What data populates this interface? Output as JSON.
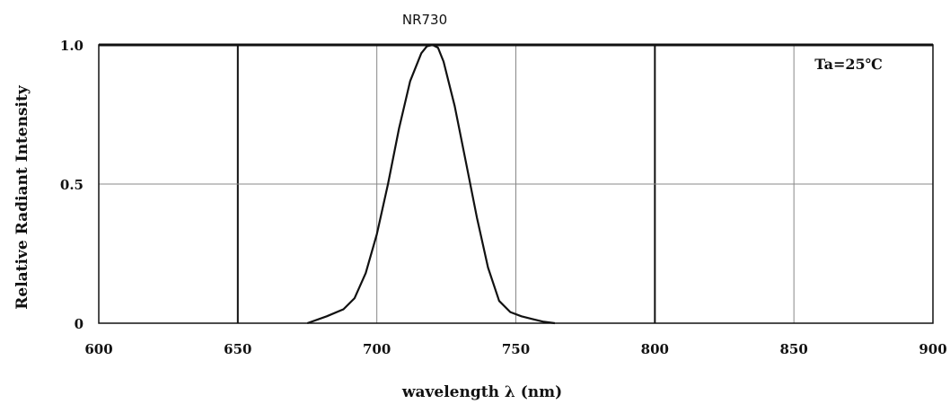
{
  "chart_data": {
    "type": "line",
    "title": "NR730",
    "xlabel": "wavelength λ (nm)",
    "ylabel": "Relative Radiant Intensity",
    "xlim": [
      600,
      900
    ],
    "ylim": [
      0,
      1.0
    ],
    "x_ticks": [
      "600",
      "650",
      "700",
      "750",
      "800",
      "850",
      "900"
    ],
    "y_ticks": [
      "0",
      "0.5",
      "1.0"
    ],
    "grid": true,
    "annotation": "Ta=25℃",
    "annotation_position": "top-right",
    "series": [
      {
        "x": [
          675,
          682,
          688,
          692,
          696,
          700,
          704,
          708,
          712,
          716,
          718,
          720,
          722,
          724,
          728,
          732,
          736,
          740,
          744,
          748,
          752,
          756,
          760,
          764
        ],
        "y": [
          0,
          0.025,
          0.05,
          0.09,
          0.18,
          0.32,
          0.5,
          0.7,
          0.87,
          0.97,
          0.995,
          1.0,
          0.99,
          0.94,
          0.78,
          0.58,
          0.38,
          0.2,
          0.08,
          0.04,
          0.025,
          0.015,
          0.005,
          0
        ]
      }
    ]
  }
}
